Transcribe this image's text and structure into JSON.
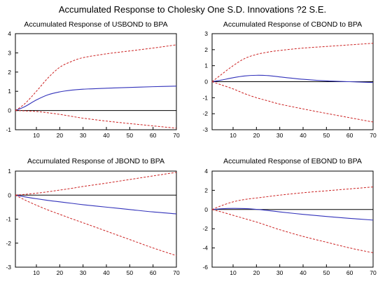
{
  "figure": {
    "title": "Accumulated Response to Cholesky One S.D. Innovations ?2 S.E."
  },
  "colors": {
    "response": "#3333bb",
    "band": "#cc2222",
    "zero_line": "#000000",
    "frame": "#000000"
  },
  "chart_data": [
    {
      "type": "line",
      "title": "Accumulated Response of USBOND to BPA",
      "x_ticks": [
        10,
        20,
        30,
        40,
        50,
        60,
        70
      ],
      "y_ticks": [
        -1,
        0,
        1,
        2,
        3,
        4
      ],
      "xlim": [
        1,
        70
      ],
      "ylim": [
        -1,
        4
      ],
      "grid": false,
      "series": [
        {
          "role": "response",
          "style": "solid",
          "x": [
            1,
            5,
            10,
            15,
            20,
            25,
            30,
            40,
            50,
            60,
            70
          ],
          "y": [
            0.0,
            0.2,
            0.55,
            0.82,
            0.97,
            1.06,
            1.11,
            1.16,
            1.2,
            1.24,
            1.27
          ]
        },
        {
          "role": "upper",
          "style": "dashed",
          "x": [
            1,
            5,
            10,
            15,
            20,
            25,
            30,
            40,
            50,
            60,
            70
          ],
          "y": [
            0.0,
            0.35,
            1.0,
            1.7,
            2.25,
            2.55,
            2.75,
            2.95,
            3.1,
            3.25,
            3.42
          ]
        },
        {
          "role": "lower",
          "style": "dashed",
          "x": [
            1,
            5,
            10,
            15,
            20,
            25,
            30,
            40,
            50,
            60,
            70
          ],
          "y": [
            0.0,
            -0.02,
            -0.05,
            -0.12,
            -0.2,
            -0.3,
            -0.4,
            -0.55,
            -0.68,
            -0.8,
            -0.92
          ]
        }
      ]
    },
    {
      "type": "line",
      "title": "Accumulated Response of CBOND to BPA",
      "x_ticks": [
        10,
        20,
        30,
        40,
        50,
        60,
        70
      ],
      "y_ticks": [
        -3,
        -2,
        -1,
        0,
        1,
        2,
        3
      ],
      "xlim": [
        1,
        70
      ],
      "ylim": [
        -3,
        3
      ],
      "grid": false,
      "series": [
        {
          "role": "response",
          "style": "solid",
          "x": [
            1,
            5,
            10,
            15,
            20,
            25,
            30,
            40,
            50,
            60,
            70
          ],
          "y": [
            0.0,
            0.1,
            0.25,
            0.36,
            0.4,
            0.38,
            0.3,
            0.15,
            0.05,
            0.0,
            -0.05
          ]
        },
        {
          "role": "upper",
          "style": "dashed",
          "x": [
            1,
            5,
            10,
            15,
            20,
            25,
            30,
            40,
            50,
            60,
            70
          ],
          "y": [
            0.0,
            0.45,
            1.0,
            1.45,
            1.7,
            1.85,
            1.95,
            2.1,
            2.2,
            2.3,
            2.4
          ]
        },
        {
          "role": "lower",
          "style": "dashed",
          "x": [
            1,
            5,
            10,
            15,
            20,
            25,
            30,
            40,
            50,
            60,
            70
          ],
          "y": [
            0.0,
            -0.2,
            -0.45,
            -0.75,
            -1.0,
            -1.2,
            -1.4,
            -1.7,
            -1.98,
            -2.25,
            -2.52
          ]
        }
      ]
    },
    {
      "type": "line",
      "title": "Accumulated Response of JBOND to BPA",
      "x_ticks": [
        10,
        20,
        30,
        40,
        50,
        60,
        70
      ],
      "y_ticks": [
        -3,
        -2,
        -1,
        0,
        1
      ],
      "xlim": [
        1,
        70
      ],
      "ylim": [
        -3,
        1
      ],
      "grid": false,
      "series": [
        {
          "role": "response",
          "style": "solid",
          "x": [
            1,
            5,
            10,
            15,
            20,
            25,
            30,
            40,
            50,
            60,
            70
          ],
          "y": [
            0.0,
            -0.07,
            -0.15,
            -0.22,
            -0.28,
            -0.34,
            -0.4,
            -0.5,
            -0.6,
            -0.7,
            -0.78
          ]
        },
        {
          "role": "upper",
          "style": "dashed",
          "x": [
            1,
            5,
            10,
            15,
            20,
            25,
            30,
            40,
            50,
            60,
            70
          ],
          "y": [
            0.0,
            0.03,
            0.08,
            0.14,
            0.21,
            0.28,
            0.36,
            0.5,
            0.65,
            0.8,
            0.95
          ]
        },
        {
          "role": "lower",
          "style": "dashed",
          "x": [
            1,
            5,
            10,
            15,
            20,
            25,
            30,
            40,
            50,
            60,
            70
          ],
          "y": [
            0.0,
            -0.2,
            -0.42,
            -0.62,
            -0.8,
            -0.98,
            -1.15,
            -1.5,
            -1.85,
            -2.2,
            -2.52
          ]
        }
      ]
    },
    {
      "type": "line",
      "title": "Accumulated Response of EBOND to BPA",
      "x_ticks": [
        10,
        20,
        30,
        40,
        50,
        60,
        70
      ],
      "y_ticks": [
        -6,
        -4,
        -2,
        0,
        2,
        4
      ],
      "xlim": [
        1,
        70
      ],
      "ylim": [
        -6,
        4
      ],
      "grid": false,
      "series": [
        {
          "role": "response",
          "style": "solid",
          "x": [
            1,
            5,
            10,
            15,
            20,
            25,
            30,
            40,
            50,
            60,
            70
          ],
          "y": [
            0.0,
            0.08,
            0.12,
            0.1,
            0.02,
            -0.1,
            -0.25,
            -0.5,
            -0.72,
            -0.92,
            -1.1
          ]
        },
        {
          "role": "upper",
          "style": "dashed",
          "x": [
            1,
            5,
            10,
            15,
            20,
            25,
            30,
            40,
            50,
            60,
            70
          ],
          "y": [
            0.0,
            0.4,
            0.8,
            1.05,
            1.2,
            1.35,
            1.5,
            1.75,
            1.95,
            2.15,
            2.35
          ]
        },
        {
          "role": "lower",
          "style": "dashed",
          "x": [
            1,
            5,
            10,
            15,
            20,
            25,
            30,
            40,
            50,
            60,
            70
          ],
          "y": [
            0.0,
            -0.25,
            -0.6,
            -0.95,
            -1.3,
            -1.7,
            -2.1,
            -2.8,
            -3.4,
            -4.0,
            -4.5
          ]
        }
      ]
    }
  ]
}
